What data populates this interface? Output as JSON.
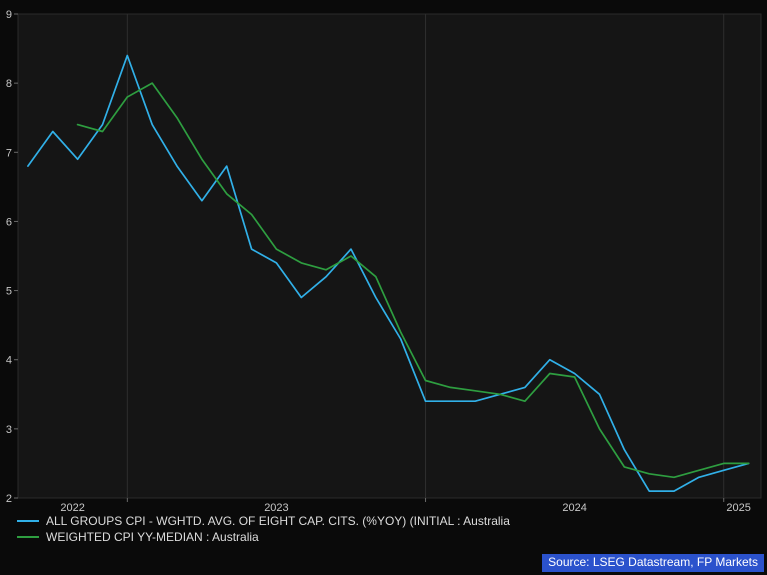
{
  "legend": {
    "items": [
      {
        "label": "ALL GROUPS CPI - WGHTD. AVG. OF EIGHT CAP. CITS. (%YOY) (INITIAL : Australia",
        "color": "#31b0e8"
      },
      {
        "label": "WEIGHTED CPI YY-MEDIAN : Australia",
        "color": "#2e9e40"
      }
    ]
  },
  "source": {
    "text": "Source: LSEG Datastream, FP Markets",
    "bg": "#2b52cc",
    "fg": "#ffffff"
  },
  "chart_data": {
    "type": "line",
    "title": "",
    "xlabel": "",
    "ylabel": "",
    "x_unit": "months since 2022-08 (monthly year-over-year CPI, %)",
    "x_range": [
      -0.4,
      29.5
    ],
    "y_range": [
      2,
      9
    ],
    "y_ticks": [
      2,
      3,
      4,
      5,
      6,
      7,
      8,
      9
    ],
    "x_gridlines": [
      4,
      16,
      28
    ],
    "x_tick_labels": [
      {
        "x": 1.8,
        "label": "2022"
      },
      {
        "x": 10,
        "label": "2023"
      },
      {
        "x": 22,
        "label": "2024"
      },
      {
        "x": 28.6,
        "label": "2025"
      }
    ],
    "grid": "vertical-only",
    "legend_position": "bottom-left",
    "style": {
      "page_bg": "#0a0a0a",
      "plot_bg": "#151515",
      "plot_border": "#2a2a2a",
      "grid_color": "#2e2e2e",
      "tick_mark_color": "#6a6a6a",
      "tick_label_color": "#c8c8c8"
    },
    "series": [
      {
        "id": "all-groups-cpi",
        "name": "ALL GROUPS CPI - WGHTD. AVG. OF EIGHT CAP. CITS. (%YOY) (INITIAL : Australia",
        "color": "#31b0e8",
        "freq": "monthly",
        "start_month": "2022-08",
        "x_start": 0,
        "values": [
          6.8,
          7.3,
          6.9,
          7.4,
          8.4,
          7.4,
          6.8,
          6.3,
          6.8,
          5.6,
          5.4,
          4.9,
          5.2,
          5.6,
          4.9,
          4.3,
          3.4,
          3.4,
          3.4,
          3.5,
          3.6,
          4.0,
          3.8,
          3.5,
          2.7,
          2.1,
          2.1,
          2.3,
          2.4,
          2.5
        ]
      },
      {
        "id": "weighted-median-cpi",
        "name": "WEIGHTED CPI YY-MEDIAN : Australia",
        "color": "#2e9e40",
        "freq": "monthly",
        "start_month": "2022-10",
        "x_start": 2,
        "values": [
          7.4,
          7.3,
          7.8,
          8.0,
          7.5,
          6.9,
          6.4,
          6.1,
          5.6,
          5.4,
          5.3,
          5.5,
          5.2,
          4.4,
          3.7,
          3.6,
          3.55,
          3.5,
          3.4,
          3.8,
          3.75,
          3.0,
          2.45,
          2.35,
          2.3,
          2.4,
          2.5,
          2.5
        ]
      }
    ]
  }
}
